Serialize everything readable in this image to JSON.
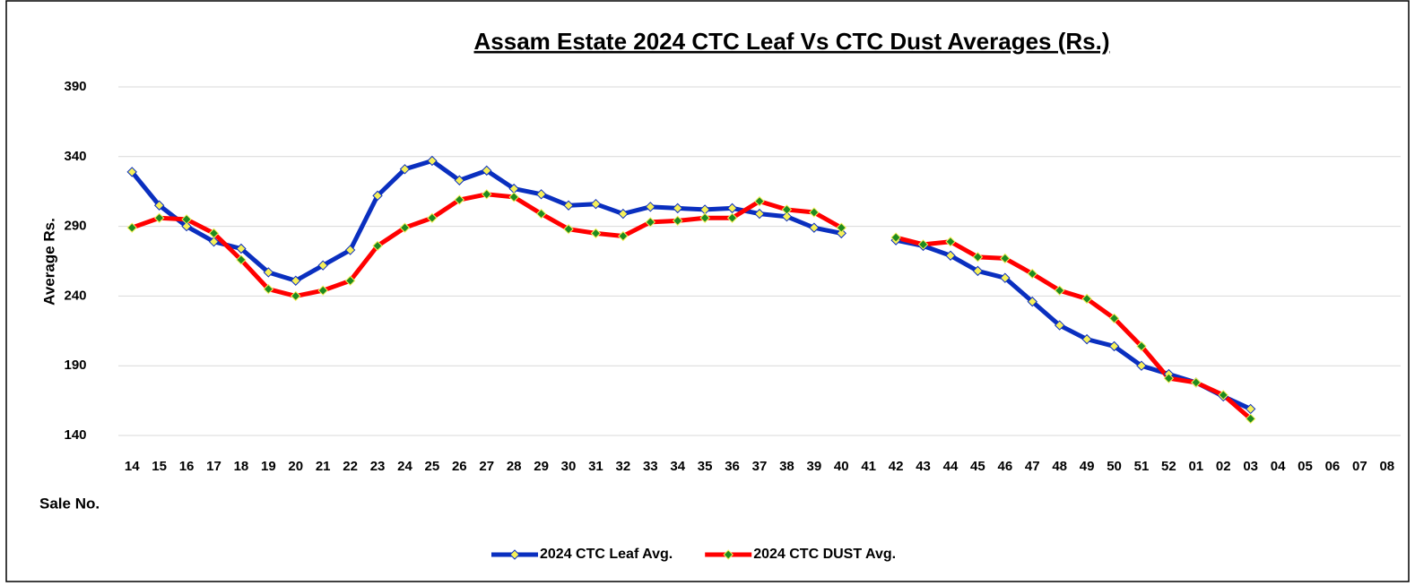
{
  "chart_data": {
    "type": "line",
    "title": "Assam Estate 2024 CTC Leaf Vs CTC Dust Averages (Rs.)",
    "y_label": "Average Rs.",
    "x_label": "Sale No.",
    "categories": [
      "14",
      "15",
      "16",
      "17",
      "18",
      "19",
      "20",
      "21",
      "22",
      "23",
      "24",
      "25",
      "26",
      "27",
      "28",
      "29",
      "30",
      "31",
      "32",
      "33",
      "34",
      "35",
      "36",
      "37",
      "38",
      "39",
      "40",
      "41",
      "42",
      "43",
      "44",
      "45",
      "46",
      "47",
      "48",
      "49",
      "50",
      "51",
      "52",
      "01",
      "02",
      "03",
      "04",
      "05",
      "06",
      "07",
      "08"
    ],
    "series": [
      {
        "name": "2024 CTC Leaf Avg.",
        "color": "#0a2fbf",
        "marker_color": "#f6f05a",
        "values": [
          329,
          305,
          290,
          279,
          274,
          257,
          251,
          262,
          273,
          312,
          331,
          337,
          323,
          330,
          317,
          313,
          305,
          306,
          299,
          304,
          303,
          302,
          303,
          299,
          297,
          289,
          285,
          null,
          280,
          276,
          269,
          258,
          253,
          236,
          219,
          209,
          204,
          190,
          184,
          178,
          168,
          159,
          null,
          null,
          null,
          null,
          null
        ]
      },
      {
        "name": "2024 CTC DUST Avg.",
        "color": "#ff0000",
        "marker_color": "#1f8a1f",
        "values": [
          289,
          296,
          295,
          285,
          266,
          245,
          240,
          244,
          251,
          276,
          289,
          296,
          309,
          313,
          311,
          299,
          288,
          285,
          283,
          293,
          294,
          296,
          296,
          308,
          302,
          300,
          289,
          null,
          282,
          277,
          279,
          268,
          267,
          256,
          244,
          238,
          224,
          204,
          181,
          178,
          169,
          152,
          null,
          null,
          null,
          null,
          null
        ]
      }
    ],
    "ylim": [
      140,
      390
    ],
    "yticks": [
      140,
      190,
      240,
      290,
      340,
      390
    ],
    "grid": true,
    "legend": "bottom"
  }
}
